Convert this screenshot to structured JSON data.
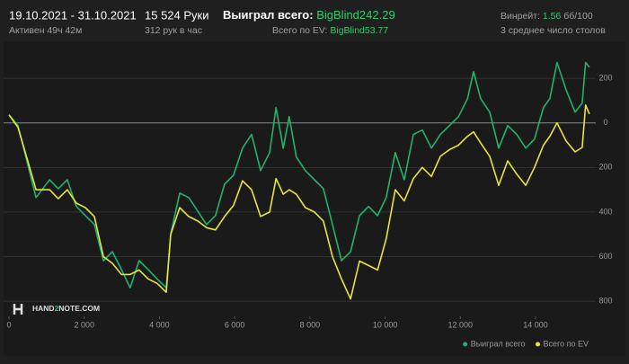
{
  "header": {
    "date_range": "19.10.2021 - 31.10.2021",
    "active": "Активен 49ч 42м",
    "hands": "15 524 Руки",
    "hands_per_hour": "312 рук в час",
    "won_label": "Выиграл всего:",
    "won_value": "BigBlind242.29",
    "ev_label": "Всего по EV:",
    "ev_value": "BigBlind53.77",
    "winrate_label": "Винрейт:",
    "winrate_value": "1.56",
    "winrate_unit": "бб/100",
    "tables": "3 среднее число столов",
    "logo": [
      "HAND",
      "2",
      "NOTE.COM"
    ]
  },
  "chart_data": {
    "type": "line",
    "x": [
      0,
      240,
      480,
      720,
      1080,
      1310,
      1550,
      1790,
      2030,
      2270,
      2510,
      2750,
      2990,
      3220,
      3460,
      3700,
      3940,
      4180,
      4300,
      4540,
      4780,
      5020,
      5250,
      5490,
      5730,
      5970,
      6210,
      6450,
      6690,
      6930,
      7100,
      7290,
      7450,
      7640,
      7880,
      8120,
      8360,
      8600,
      8840,
      9080,
      9320,
      9560,
      9800,
      10030,
      10270,
      10510,
      10750,
      10990,
      11230,
      11470,
      11710,
      11950,
      12190,
      12350,
      12540,
      12780,
      13020,
      13260,
      13500,
      13740,
      13970,
      14210,
      14380,
      14570,
      14810,
      15050,
      15240,
      15330,
      15430
    ],
    "series": [
      {
        "name": "Выиграл всего",
        "color": "#23b26d",
        "values": [
          36,
          -12,
          -174,
          -335,
          -255,
          -295,
          -255,
          -375,
          -416,
          -456,
          -618,
          -578,
          -658,
          -740,
          -618,
          -658,
          -700,
          -740,
          -497,
          -315,
          -335,
          -396,
          -456,
          -416,
          -275,
          -234,
          -113,
          -52,
          -214,
          -133,
          69,
          -113,
          28,
          -153,
          -214,
          -255,
          -295,
          -456,
          -618,
          -578,
          -416,
          -375,
          -416,
          -335,
          -133,
          -255,
          -52,
          -32,
          -113,
          -52,
          -12,
          28,
          109,
          230,
          109,
          48,
          -113,
          -12,
          -52,
          -113,
          -73,
          69,
          109,
          271,
          149,
          48,
          89,
          271,
          250
        ]
      },
      {
        "name": "Всего по EV",
        "color": "#e6e63a",
        "values": [
          36,
          -20,
          -160,
          -300,
          -300,
          -340,
          -300,
          -360,
          -380,
          -420,
          -600,
          -630,
          -680,
          -680,
          -660,
          -700,
          -720,
          -760,
          -500,
          -380,
          -420,
          -440,
          -470,
          -480,
          -420,
          -370,
          -260,
          -300,
          -420,
          -400,
          -250,
          -320,
          -300,
          -320,
          -380,
          -400,
          -440,
          -600,
          -700,
          -790,
          -620,
          -640,
          -660,
          -520,
          -300,
          -350,
          -250,
          -200,
          -240,
          -150,
          -120,
          -100,
          -60,
          -40,
          -90,
          -150,
          -280,
          -170,
          -230,
          -280,
          -200,
          -100,
          -60,
          0,
          -80,
          -130,
          -110,
          80,
          40
        ]
      }
    ],
    "xlim": [
      0,
      15600
    ],
    "xticks": [
      0,
      {
        "value": 2000,
        "label": "2 000"
      },
      {
        "value": 4000,
        "label": "4 000"
      },
      {
        "value": 6000,
        "label": "6 000"
      },
      {
        "value": 8000,
        "label": "8 000"
      },
      {
        "value": 10000,
        "label": "10 000"
      },
      {
        "value": 12000,
        "label": "12 000"
      },
      {
        "value": 14000,
        "label": "14 000"
      }
    ],
    "ylim": [
      -860,
      370
    ],
    "yticks": [
      200,
      0,
      {
        "value": -200,
        "label": "200"
      },
      {
        "value": -400,
        "label": "400"
      },
      {
        "value": -600,
        "label": "600"
      },
      {
        "value": -800,
        "label": "800"
      }
    ],
    "grid": true,
    "legend": "bottom-right"
  }
}
